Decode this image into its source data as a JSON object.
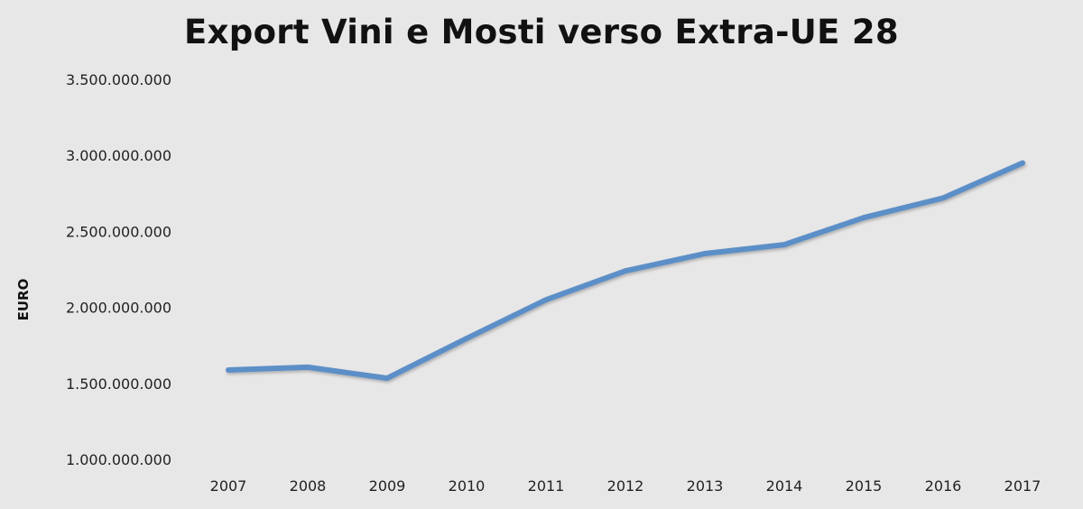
{
  "chart_data": {
    "type": "line",
    "title": "Export Vini e Mosti verso Extra-UE 28",
    "xlabel": "",
    "ylabel": "EURO",
    "categories": [
      "2007",
      "2008",
      "2009",
      "2010",
      "2011",
      "2012",
      "2013",
      "2014",
      "2015",
      "2016",
      "2017"
    ],
    "series": [
      {
        "name": "Export Vini e Mosti verso Extra-UE 28",
        "color": "#5b8fc7",
        "values": [
          1588000000,
          1606000000,
          1534000000,
          1796000000,
          2050000000,
          2240000000,
          2354000000,
          2413000000,
          2590000000,
          2720000000,
          2950000000
        ]
      }
    ],
    "ylim": [
      1000000000,
      3500000000
    ],
    "yticks": [
      1000000000,
      1500000000,
      2000000000,
      2500000000,
      3000000000,
      3500000000
    ],
    "ytick_labels": [
      "1.000.000.000",
      "1.500.000.000",
      "2.000.000.000",
      "2.500.000.000",
      "3.000.000.000",
      "3.500.000.000"
    ],
    "grid": false,
    "legend": "none"
  }
}
